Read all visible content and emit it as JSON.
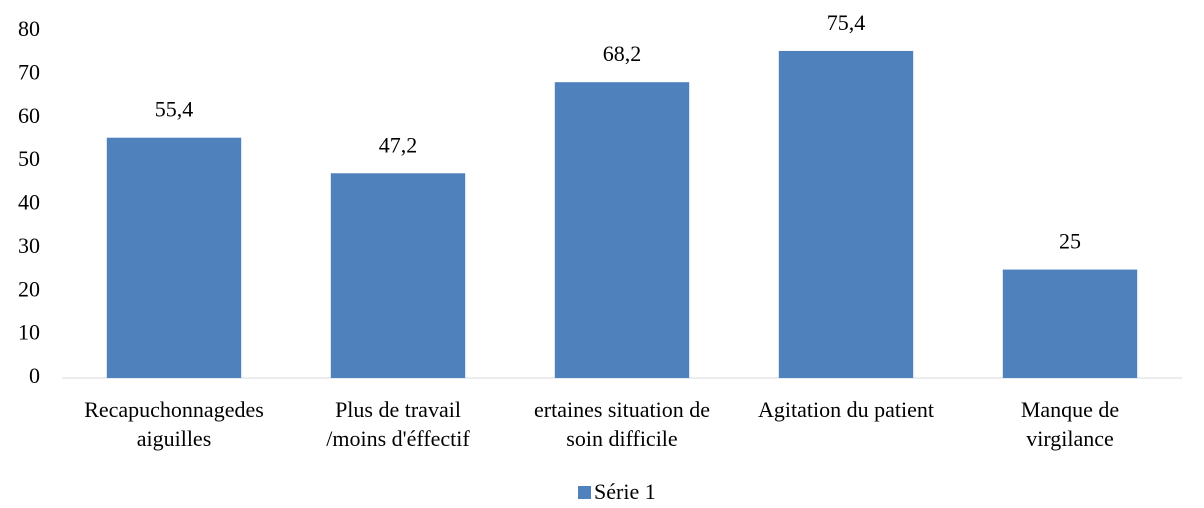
{
  "chart_data": {
    "type": "bar",
    "categories": [
      [
        "Recapuchonnagedes",
        "aiguilles"
      ],
      [
        "Plus de travail",
        "/moins d'éffectif"
      ],
      [
        "ertaines situation de",
        "soin difficile"
      ],
      [
        "Agitation du patient"
      ],
      [
        "Manque de",
        "virgilance"
      ]
    ],
    "series": [
      {
        "name": "Série 1",
        "color": "#4f81bd",
        "values": [
          55.4,
          47.2,
          68.2,
          75.4,
          25
        ],
        "value_labels": [
          "55,4",
          "47,2",
          "68,2",
          "75,4",
          "25"
        ]
      }
    ],
    "ylim": [
      0,
      80
    ],
    "yticks": [
      0,
      10,
      20,
      30,
      40,
      50,
      60,
      70,
      80
    ],
    "grid": false,
    "legend": "bottom"
  }
}
